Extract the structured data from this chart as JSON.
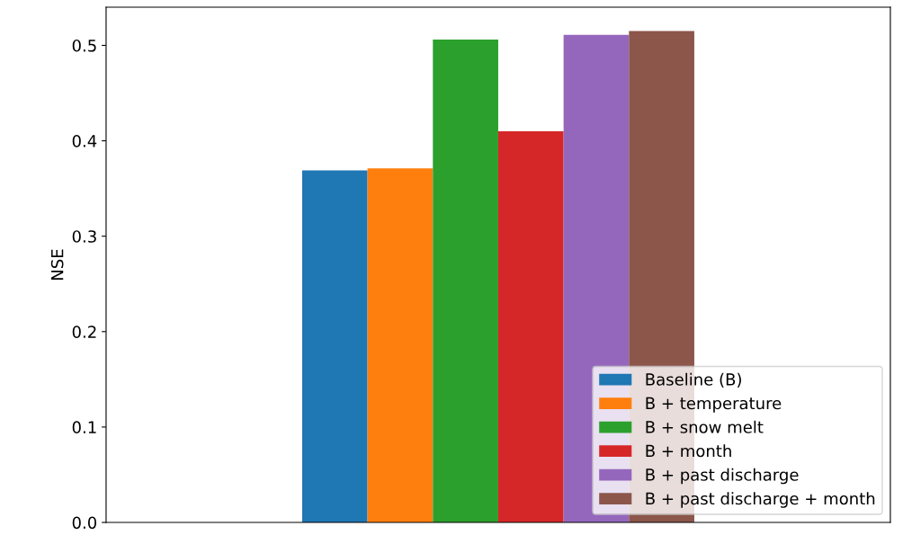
{
  "chart_data": {
    "type": "bar",
    "ylabel": "NSE",
    "categories": [
      null
    ],
    "series": [
      {
        "name": "Baseline (B)",
        "color": "#1f77b4",
        "values": [
          0.369
        ]
      },
      {
        "name": "B + temperature",
        "color": "#ff7f0e",
        "values": [
          0.371
        ]
      },
      {
        "name": "B + snow melt",
        "color": "#2ca02c",
        "values": [
          0.506
        ]
      },
      {
        "name": "B + month",
        "color": "#d62728",
        "values": [
          0.41
        ]
      },
      {
        "name": "B + past discharge",
        "color": "#9467bd",
        "values": [
          0.511
        ]
      },
      {
        "name": "B + past discharge + month",
        "color": "#8c564b",
        "values": [
          0.515
        ]
      }
    ],
    "ylim": [
      0,
      0.54
    ],
    "yticks": [
      {
        "value": 0,
        "label": "0.0"
      },
      0.1,
      0.2,
      0.3,
      0.4,
      0.5
    ],
    "legend": "bottom right",
    "grid": false
  }
}
